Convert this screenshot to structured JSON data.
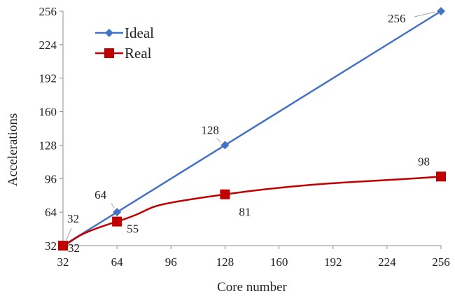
{
  "chart_data": {
    "type": "line",
    "xlabel": "Core number",
    "ylabel": "Accelerations",
    "xlim": [
      32,
      256
    ],
    "ylim": [
      32,
      256
    ],
    "xticks": [
      32,
      64,
      96,
      128,
      160,
      192,
      224,
      256
    ],
    "yticks": [
      32,
      64,
      96,
      128,
      160,
      192,
      224,
      256
    ],
    "grid": false,
    "legend": "top-left",
    "series": [
      {
        "name": "Ideal",
        "color": "#4472C4",
        "marker": "diamond",
        "smooth": false,
        "x": [
          32,
          64,
          128,
          256
        ],
        "y": [
          32,
          64,
          128,
          256
        ],
        "labels": [
          "32",
          "64",
          "128",
          "256"
        ]
      },
      {
        "name": "Real",
        "color": "#C00000",
        "marker": "square",
        "smooth": true,
        "x": [
          32,
          64,
          128,
          256
        ],
        "y": [
          32,
          55,
          81,
          98
        ],
        "labels": [
          "32",
          "55",
          "81",
          "98"
        ]
      }
    ]
  }
}
